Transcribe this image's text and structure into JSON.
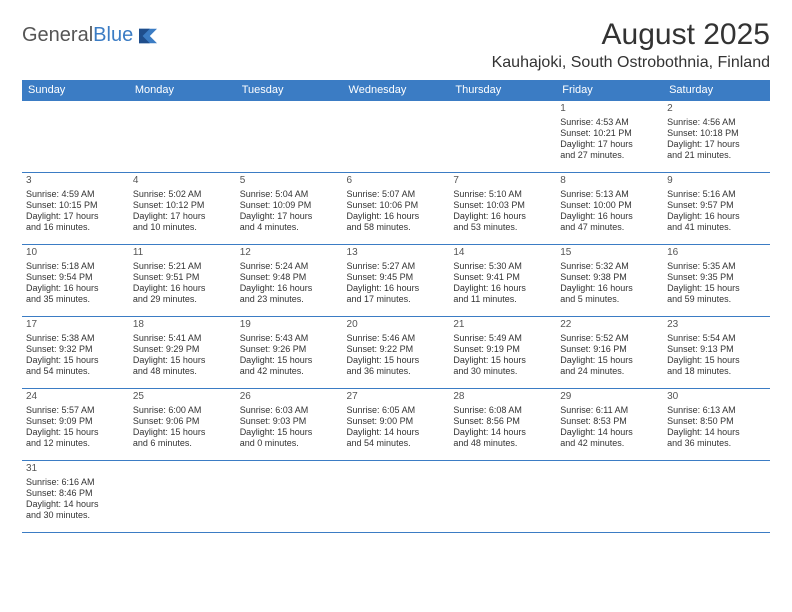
{
  "logo": {
    "textA": "General",
    "textB": "Blue"
  },
  "title": "August 2025",
  "location": "Kauhajoki, South Ostrobothnia, Finland",
  "colors": {
    "header_bg": "#3b7cc4",
    "header_text": "#ffffff",
    "border": "#3b7cc4",
    "text": "#333333"
  },
  "weekdays": [
    "Sunday",
    "Monday",
    "Tuesday",
    "Wednesday",
    "Thursday",
    "Friday",
    "Saturday"
  ],
  "weeks": [
    [
      null,
      null,
      null,
      null,
      null,
      {
        "n": "1",
        "sr": "Sunrise: 4:53 AM",
        "ss": "Sunset: 10:21 PM",
        "d1": "Daylight: 17 hours",
        "d2": "and 27 minutes."
      },
      {
        "n": "2",
        "sr": "Sunrise: 4:56 AM",
        "ss": "Sunset: 10:18 PM",
        "d1": "Daylight: 17 hours",
        "d2": "and 21 minutes."
      }
    ],
    [
      {
        "n": "3",
        "sr": "Sunrise: 4:59 AM",
        "ss": "Sunset: 10:15 PM",
        "d1": "Daylight: 17 hours",
        "d2": "and 16 minutes."
      },
      {
        "n": "4",
        "sr": "Sunrise: 5:02 AM",
        "ss": "Sunset: 10:12 PM",
        "d1": "Daylight: 17 hours",
        "d2": "and 10 minutes."
      },
      {
        "n": "5",
        "sr": "Sunrise: 5:04 AM",
        "ss": "Sunset: 10:09 PM",
        "d1": "Daylight: 17 hours",
        "d2": "and 4 minutes."
      },
      {
        "n": "6",
        "sr": "Sunrise: 5:07 AM",
        "ss": "Sunset: 10:06 PM",
        "d1": "Daylight: 16 hours",
        "d2": "and 58 minutes."
      },
      {
        "n": "7",
        "sr": "Sunrise: 5:10 AM",
        "ss": "Sunset: 10:03 PM",
        "d1": "Daylight: 16 hours",
        "d2": "and 53 minutes."
      },
      {
        "n": "8",
        "sr": "Sunrise: 5:13 AM",
        "ss": "Sunset: 10:00 PM",
        "d1": "Daylight: 16 hours",
        "d2": "and 47 minutes."
      },
      {
        "n": "9",
        "sr": "Sunrise: 5:16 AM",
        "ss": "Sunset: 9:57 PM",
        "d1": "Daylight: 16 hours",
        "d2": "and 41 minutes."
      }
    ],
    [
      {
        "n": "10",
        "sr": "Sunrise: 5:18 AM",
        "ss": "Sunset: 9:54 PM",
        "d1": "Daylight: 16 hours",
        "d2": "and 35 minutes."
      },
      {
        "n": "11",
        "sr": "Sunrise: 5:21 AM",
        "ss": "Sunset: 9:51 PM",
        "d1": "Daylight: 16 hours",
        "d2": "and 29 minutes."
      },
      {
        "n": "12",
        "sr": "Sunrise: 5:24 AM",
        "ss": "Sunset: 9:48 PM",
        "d1": "Daylight: 16 hours",
        "d2": "and 23 minutes."
      },
      {
        "n": "13",
        "sr": "Sunrise: 5:27 AM",
        "ss": "Sunset: 9:45 PM",
        "d1": "Daylight: 16 hours",
        "d2": "and 17 minutes."
      },
      {
        "n": "14",
        "sr": "Sunrise: 5:30 AM",
        "ss": "Sunset: 9:41 PM",
        "d1": "Daylight: 16 hours",
        "d2": "and 11 minutes."
      },
      {
        "n": "15",
        "sr": "Sunrise: 5:32 AM",
        "ss": "Sunset: 9:38 PM",
        "d1": "Daylight: 16 hours",
        "d2": "and 5 minutes."
      },
      {
        "n": "16",
        "sr": "Sunrise: 5:35 AM",
        "ss": "Sunset: 9:35 PM",
        "d1": "Daylight: 15 hours",
        "d2": "and 59 minutes."
      }
    ],
    [
      {
        "n": "17",
        "sr": "Sunrise: 5:38 AM",
        "ss": "Sunset: 9:32 PM",
        "d1": "Daylight: 15 hours",
        "d2": "and 54 minutes."
      },
      {
        "n": "18",
        "sr": "Sunrise: 5:41 AM",
        "ss": "Sunset: 9:29 PM",
        "d1": "Daylight: 15 hours",
        "d2": "and 48 minutes."
      },
      {
        "n": "19",
        "sr": "Sunrise: 5:43 AM",
        "ss": "Sunset: 9:26 PM",
        "d1": "Daylight: 15 hours",
        "d2": "and 42 minutes."
      },
      {
        "n": "20",
        "sr": "Sunrise: 5:46 AM",
        "ss": "Sunset: 9:22 PM",
        "d1": "Daylight: 15 hours",
        "d2": "and 36 minutes."
      },
      {
        "n": "21",
        "sr": "Sunrise: 5:49 AM",
        "ss": "Sunset: 9:19 PM",
        "d1": "Daylight: 15 hours",
        "d2": "and 30 minutes."
      },
      {
        "n": "22",
        "sr": "Sunrise: 5:52 AM",
        "ss": "Sunset: 9:16 PM",
        "d1": "Daylight: 15 hours",
        "d2": "and 24 minutes."
      },
      {
        "n": "23",
        "sr": "Sunrise: 5:54 AM",
        "ss": "Sunset: 9:13 PM",
        "d1": "Daylight: 15 hours",
        "d2": "and 18 minutes."
      }
    ],
    [
      {
        "n": "24",
        "sr": "Sunrise: 5:57 AM",
        "ss": "Sunset: 9:09 PM",
        "d1": "Daylight: 15 hours",
        "d2": "and 12 minutes."
      },
      {
        "n": "25",
        "sr": "Sunrise: 6:00 AM",
        "ss": "Sunset: 9:06 PM",
        "d1": "Daylight: 15 hours",
        "d2": "and 6 minutes."
      },
      {
        "n": "26",
        "sr": "Sunrise: 6:03 AM",
        "ss": "Sunset: 9:03 PM",
        "d1": "Daylight: 15 hours",
        "d2": "and 0 minutes."
      },
      {
        "n": "27",
        "sr": "Sunrise: 6:05 AM",
        "ss": "Sunset: 9:00 PM",
        "d1": "Daylight: 14 hours",
        "d2": "and 54 minutes."
      },
      {
        "n": "28",
        "sr": "Sunrise: 6:08 AM",
        "ss": "Sunset: 8:56 PM",
        "d1": "Daylight: 14 hours",
        "d2": "and 48 minutes."
      },
      {
        "n": "29",
        "sr": "Sunrise: 6:11 AM",
        "ss": "Sunset: 8:53 PM",
        "d1": "Daylight: 14 hours",
        "d2": "and 42 minutes."
      },
      {
        "n": "30",
        "sr": "Sunrise: 6:13 AM",
        "ss": "Sunset: 8:50 PM",
        "d1": "Daylight: 14 hours",
        "d2": "and 36 minutes."
      }
    ],
    [
      {
        "n": "31",
        "sr": "Sunrise: 6:16 AM",
        "ss": "Sunset: 8:46 PM",
        "d1": "Daylight: 14 hours",
        "d2": "and 30 minutes."
      },
      null,
      null,
      null,
      null,
      null,
      null
    ]
  ]
}
